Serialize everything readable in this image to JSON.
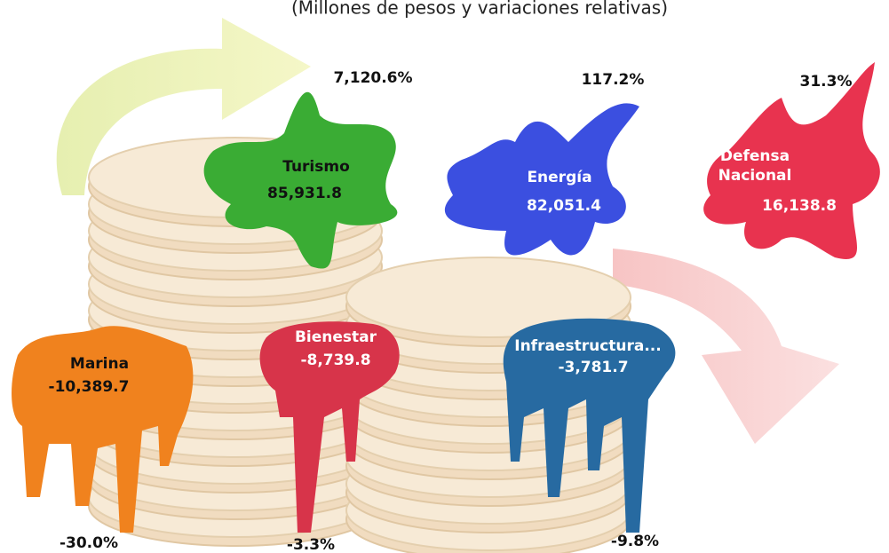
{
  "subtitle": "(Millones de pesos y variaciones relativas)",
  "items": [
    {
      "name": "Turismo",
      "value": "85,931.8",
      "change": "7,120.6%"
    },
    {
      "name": "Energía",
      "value": "82,051.4",
      "change": "117.2%"
    },
    {
      "name": "Defensa Nacional",
      "value": "16,138.8",
      "change": "31.3%"
    },
    {
      "name": "Marina",
      "value": "-10,389.7",
      "change": "-30.0%"
    },
    {
      "name": "Bienestar",
      "value": "-8,739.8",
      "change": "-3.3%"
    },
    {
      "name": "Infraestructura...",
      "value": "-3,781.7",
      "change": "-9.8%"
    }
  ]
}
